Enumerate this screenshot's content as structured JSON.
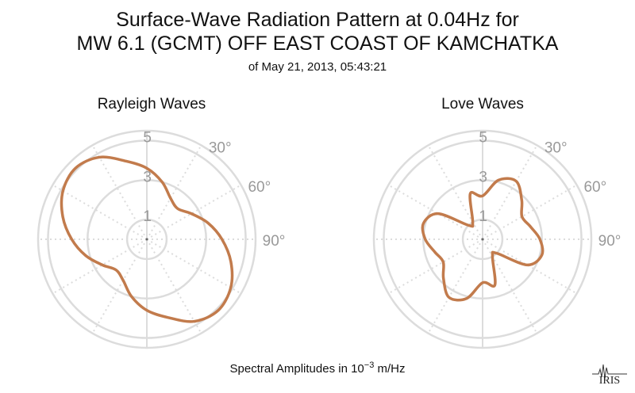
{
  "header": {
    "title_line1": "Surface-Wave Radiation Pattern at 0.04Hz for",
    "title_line2": "MW 6.1 (GCMT) OFF EAST COAST OF KAMCHATKA",
    "subtitle": "of May 21, 2013, 05:43:21"
  },
  "footer": {
    "label_prefix": "Spectral Amplitudes in 10",
    "label_exponent": "−3",
    "label_suffix": " m/Hz"
  },
  "logo": {
    "text": "IRIS"
  },
  "colors": {
    "pattern": "#c27b4c",
    "grid": "#dcdcdc",
    "labels": "#999999"
  },
  "chart_data": [
    {
      "type": "polar",
      "title": "Rayleigh Waves",
      "radial_ticks": [
        1,
        3,
        5
      ],
      "r_max": 5.5,
      "angle_ticks": [
        "30°",
        "60°",
        "90°"
      ],
      "angle_grid_step_deg": 30,
      "theta_deg": [
        0,
        15,
        30,
        45,
        60,
        75,
        90,
        105,
        120,
        135,
        150,
        165,
        180,
        195,
        210,
        225,
        240,
        255,
        270,
        285,
        300,
        315,
        330,
        345
      ],
      "r": [
        3.6,
        3.0,
        2.4,
        2.2,
        2.6,
        3.2,
        3.8,
        4.4,
        4.9,
        5.1,
        4.8,
        4.1,
        3.6,
        3.0,
        2.4,
        2.2,
        2.6,
        3.2,
        3.8,
        4.4,
        4.9,
        5.1,
        4.8,
        4.1
      ]
    },
    {
      "type": "polar",
      "title": "Love Waves",
      "radial_ticks": [
        1,
        3,
        5
      ],
      "r_max": 5.5,
      "angle_ticks": [
        "30°",
        "60°",
        "90°"
      ],
      "angle_grid_step_deg": 30,
      "theta_deg": [
        0,
        15,
        30,
        45,
        60,
        75,
        90,
        105,
        120,
        135,
        150,
        165,
        180,
        195,
        210,
        225,
        240,
        255,
        270,
        285,
        300,
        315,
        330,
        345
      ],
      "r": [
        2.2,
        3.1,
        3.4,
        2.8,
        2.3,
        2.5,
        2.9,
        3.1,
        2.6,
        1.0,
        1.0,
        2.4,
        2.2,
        3.1,
        3.4,
        2.8,
        2.3,
        2.5,
        2.9,
        3.1,
        2.6,
        1.0,
        1.0,
        2.4
      ]
    }
  ]
}
